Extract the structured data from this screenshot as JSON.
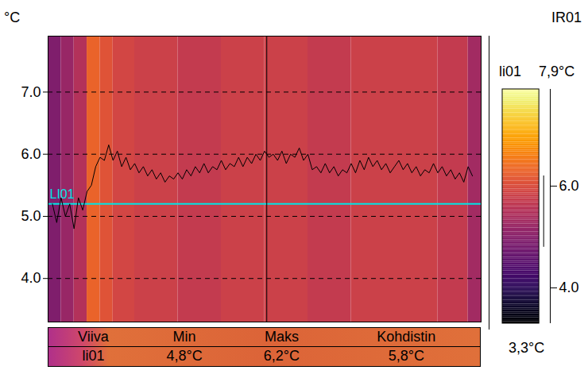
{
  "chart_data": {
    "type": "line",
    "title": "IR01",
    "y_label": "°C",
    "color": "#000000",
    "xlim": [
      0,
      100
    ],
    "ylim": [
      3.3,
      7.9
    ],
    "yticks": [
      4,
      5,
      6,
      7
    ],
    "grid": true,
    "tick_labels": "y",
    "x": [
      1,
      2,
      3,
      4,
      5,
      6,
      7,
      8,
      9,
      10,
      11,
      12,
      13,
      14,
      15,
      16,
      17,
      18,
      19,
      20,
      21,
      22,
      23,
      24,
      25,
      26,
      27,
      28,
      29,
      30,
      31,
      32,
      33,
      34,
      35,
      36,
      37,
      38,
      39,
      40,
      41,
      42,
      43,
      44,
      45,
      46,
      47,
      48,
      49,
      50,
      51,
      52,
      53,
      54,
      55,
      56,
      57,
      58,
      59,
      60,
      61,
      62,
      63,
      64,
      65,
      66,
      67,
      68,
      69,
      70,
      71,
      72,
      73,
      74,
      75,
      76,
      77,
      78,
      79,
      80,
      81,
      82,
      83,
      84,
      85,
      86,
      87,
      88,
      89,
      90,
      91,
      92,
      93,
      94,
      95,
      96,
      97,
      98
    ],
    "values": [
      5.2,
      4.9,
      5.3,
      5.0,
      5.2,
      4.8,
      5.3,
      5.1,
      5.4,
      5.5,
      5.8,
      5.95,
      5.9,
      6.15,
      5.9,
      6.05,
      5.8,
      5.95,
      5.75,
      5.85,
      5.7,
      5.8,
      5.65,
      5.75,
      5.6,
      5.7,
      5.55,
      5.65,
      5.6,
      5.7,
      5.6,
      5.75,
      5.65,
      5.8,
      5.7,
      5.85,
      5.7,
      5.8,
      5.75,
      5.9,
      5.75,
      5.85,
      5.8,
      5.95,
      5.8,
      5.95,
      5.85,
      6.0,
      5.9,
      6.05,
      5.95,
      6.0,
      5.9,
      6.05,
      5.85,
      6.0,
      5.95,
      6.1,
      5.9,
      6.0,
      5.75,
      5.8,
      5.7,
      5.85,
      5.7,
      5.8,
      5.65,
      5.75,
      5.7,
      5.85,
      5.7,
      5.9,
      5.75,
      5.95,
      5.8,
      5.9,
      5.75,
      5.85,
      5.7,
      5.8,
      5.9,
      5.75,
      5.85,
      5.7,
      5.8,
      5.65,
      5.75,
      5.7,
      5.85,
      5.7,
      5.8,
      5.65,
      5.75,
      5.6,
      5.7,
      5.55,
      5.8,
      5.65
    ],
    "cursor": {
      "x": 50.5
    },
    "line_marker": {
      "label": "LI01",
      "y": 5.2,
      "color": "#00e5e5"
    },
    "profile_range": [
      4.8,
      6.2
    ],
    "image": {
      "x_edges": [
        0,
        3,
        6,
        9,
        12,
        15,
        20,
        30,
        40,
        50,
        60,
        70,
        80,
        90,
        97,
        100
      ],
      "values": [
        4.9,
        5.2,
        5.5,
        6.3,
        6.1,
        5.9,
        5.8,
        5.7,
        5.8,
        5.8,
        5.7,
        5.8,
        5.8,
        5.7,
        5.3
      ]
    },
    "colorbar": {
      "title": "li01",
      "range": [
        3.3,
        7.9
      ],
      "ticks": [
        4,
        6
      ],
      "range_labels": [
        "3,3°C",
        "7,9°C"
      ],
      "color": "inferno"
    },
    "table": {
      "columns": [
        "Viiva",
        "Min",
        "Maks",
        "Kohdistin"
      ],
      "rows": [
        [
          "li01",
          "4,8°C",
          "6,2°C",
          "5,8°C"
        ]
      ]
    }
  }
}
